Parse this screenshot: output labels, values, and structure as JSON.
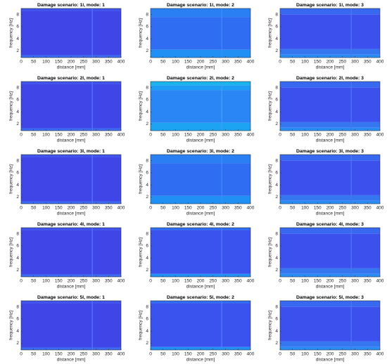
{
  "chart_data": [
    {
      "type": "heatmap",
      "title": "Damage scenario: 1l, mode: 1",
      "xlabel": "distance [mm]",
      "ylabel": "frequency [Hz]",
      "xlim": [
        0,
        400
      ],
      "ylim": [
        0.9,
        9
      ],
      "xticks": [
        0,
        50,
        100,
        150,
        200,
        250,
        300,
        350,
        400
      ],
      "yticks": [
        2,
        4,
        6,
        8
      ],
      "bands": [
        {
          "y": [
            0.9,
            1.3
          ],
          "color": "#3b6cf2"
        },
        {
          "y": [
            1.3,
            8.6
          ],
          "color": "#3f45e6"
        },
        {
          "y": [
            8.6,
            9
          ],
          "color": "#3d55ec"
        }
      ],
      "streak": {
        "x": 285,
        "color": "#4a7cf4"
      }
    },
    {
      "type": "heatmap",
      "title": "Damage scenario: 1l, mode: 2",
      "xlabel": "distance [mm]",
      "ylabel": "frequency [Hz]",
      "xlim": [
        0,
        400
      ],
      "ylim": [
        0.9,
        9
      ],
      "xticks": [
        0,
        50,
        100,
        150,
        200,
        250,
        300,
        350,
        400
      ],
      "yticks": [
        2,
        4,
        6,
        8
      ],
      "bands": [
        {
          "y": [
            0.9,
            2.2
          ],
          "color": "#2090f5"
        },
        {
          "y": [
            2.2,
            7.6
          ],
          "color": "#2f6ef2"
        },
        {
          "y": [
            7.6,
            9
          ],
          "color": "#2a80f3"
        }
      ],
      "streak": {
        "x": 285,
        "color": "#3d8ef5"
      }
    },
    {
      "type": "heatmap",
      "title": "Damage scenario: 1l, mode: 3",
      "xlabel": "distance [mm]",
      "ylabel": "frequency [Hz]",
      "xlim": [
        0,
        400
      ],
      "ylim": [
        0.9,
        9
      ],
      "xticks": [
        0,
        50,
        100,
        150,
        200,
        250,
        300,
        350,
        400
      ],
      "yticks": [
        2,
        4,
        6,
        8
      ],
      "bands": [
        {
          "y": [
            0.9,
            1.4
          ],
          "color": "#2a8cf5"
        },
        {
          "y": [
            1.4,
            2.3
          ],
          "color": "#3576f1"
        },
        {
          "y": [
            2.3,
            8
          ],
          "color": "#3c50ee"
        },
        {
          "y": [
            8,
            9
          ],
          "color": "#3868ef"
        }
      ],
      "streak": {
        "x": 285,
        "color": "#4a78f3"
      }
    },
    {
      "type": "heatmap",
      "title": "Damage scenario: 2l, mode: 1",
      "xlabel": "distance [mm]",
      "ylabel": "frequency [Hz]",
      "xlim": [
        0,
        400
      ],
      "ylim": [
        0.9,
        9
      ],
      "xticks": [
        0,
        50,
        100,
        150,
        200,
        250,
        300,
        350,
        400
      ],
      "yticks": [
        2,
        4,
        6,
        8
      ],
      "bands": [
        {
          "y": [
            0.9,
            1.3
          ],
          "color": "#3b6cf2"
        },
        {
          "y": [
            1.3,
            8.6
          ],
          "color": "#3f45e6"
        },
        {
          "y": [
            8.6,
            9
          ],
          "color": "#3d55ec"
        }
      ],
      "streak": {
        "x": 285,
        "color": "#4a7cf4"
      }
    },
    {
      "type": "heatmap",
      "title": "Damage scenario: 2l, mode: 2",
      "xlabel": "distance [mm]",
      "ylabel": "frequency [Hz]",
      "xlim": [
        0,
        400
      ],
      "ylim": [
        0.9,
        9
      ],
      "xticks": [
        0,
        50,
        100,
        150,
        200,
        250,
        300,
        350,
        400
      ],
      "yticks": [
        2,
        4,
        6,
        8
      ],
      "bands": [
        {
          "y": [
            0.9,
            2.2
          ],
          "color": "#1ca4f2"
        },
        {
          "y": [
            2.2,
            7.6
          ],
          "color": "#2a86f4"
        },
        {
          "y": [
            7.6,
            8.4
          ],
          "color": "#1d9cf3"
        },
        {
          "y": [
            8.4,
            9
          ],
          "color": "#18b4ee"
        }
      ],
      "streak": {
        "x": 285,
        "color": "#40a0f5"
      }
    },
    {
      "type": "heatmap",
      "title": "Damage scenario: 2l, mode: 3",
      "xlabel": "distance [mm]",
      "ylabel": "frequency [Hz]",
      "xlim": [
        0,
        400
      ],
      "ylim": [
        0.9,
        9
      ],
      "xticks": [
        0,
        50,
        100,
        150,
        200,
        250,
        300,
        350,
        400
      ],
      "yticks": [
        2,
        4,
        6,
        8
      ],
      "bands": [
        {
          "y": [
            0.9,
            1.4
          ],
          "color": "#2a8cf5"
        },
        {
          "y": [
            1.4,
            2.3
          ],
          "color": "#3576f1"
        },
        {
          "y": [
            2.3,
            8
          ],
          "color": "#3c50ee"
        },
        {
          "y": [
            8,
            9
          ],
          "color": "#3868ef"
        }
      ],
      "streak": {
        "x": 285,
        "color": "#4a78f3"
      }
    },
    {
      "type": "heatmap",
      "title": "Damage scenario: 3l, mode: 1",
      "xlabel": "distance [mm]",
      "ylabel": "frequency [Hz]",
      "xlim": [
        0,
        400
      ],
      "ylim": [
        0.9,
        9
      ],
      "xticks": [
        0,
        50,
        100,
        150,
        200,
        250,
        300,
        350,
        400
      ],
      "yticks": [
        2,
        4,
        6,
        8
      ],
      "bands": [
        {
          "y": [
            0.9,
            1.3
          ],
          "color": "#3b6cf2"
        },
        {
          "y": [
            1.3,
            8.6
          ],
          "color": "#3f45e6"
        },
        {
          "y": [
            8.6,
            9
          ],
          "color": "#3d55ec"
        }
      ],
      "streak": {
        "x": 285,
        "color": "#4a7cf4"
      }
    },
    {
      "type": "heatmap",
      "title": "Damage scenario: 3l, mode: 2",
      "xlabel": "distance [mm]",
      "ylabel": "frequency [Hz]",
      "xlim": [
        0,
        400
      ],
      "ylim": [
        0.9,
        9
      ],
      "xticks": [
        0,
        50,
        100,
        150,
        200,
        250,
        300,
        350,
        400
      ],
      "yticks": [
        2,
        4,
        6,
        8
      ],
      "bands": [
        {
          "y": [
            0.9,
            2.2
          ],
          "color": "#2090f5"
        },
        {
          "y": [
            2.2,
            7.6
          ],
          "color": "#2f6ef2"
        },
        {
          "y": [
            7.6,
            9
          ],
          "color": "#2a80f3"
        }
      ],
      "streak": {
        "x": 285,
        "color": "#3d8ef5"
      }
    },
    {
      "type": "heatmap",
      "title": "Damage scenario: 3l, mode: 3",
      "xlabel": "distance [mm]",
      "ylabel": "frequency [Hz]",
      "xlim": [
        0,
        400
      ],
      "ylim": [
        0.9,
        9
      ],
      "xticks": [
        0,
        50,
        100,
        150,
        200,
        250,
        300,
        350,
        400
      ],
      "yticks": [
        2,
        4,
        6,
        8
      ],
      "bands": [
        {
          "y": [
            0.9,
            1.4
          ],
          "color": "#2a8cf5"
        },
        {
          "y": [
            1.4,
            2.3
          ],
          "color": "#3576f1"
        },
        {
          "y": [
            2.3,
            8
          ],
          "color": "#3c50ee"
        },
        {
          "y": [
            8,
            9
          ],
          "color": "#3868ef"
        }
      ],
      "streak": {
        "x": 285,
        "color": "#4a78f3"
      }
    },
    {
      "type": "heatmap",
      "title": "Damage scenario: 4l, mode: 1",
      "xlabel": "distance [mm]",
      "ylabel": "frequency [Hz]",
      "xlim": [
        0,
        400
      ],
      "ylim": [
        0.9,
        9
      ],
      "xticks": [
        0,
        50,
        100,
        150,
        200,
        250,
        300,
        350,
        400
      ],
      "yticks": [
        2,
        4,
        6,
        8
      ],
      "bands": [
        {
          "y": [
            0.9,
            1.3
          ],
          "color": "#3b6cf2"
        },
        {
          "y": [
            1.3,
            8.6
          ],
          "color": "#3f45e6"
        },
        {
          "y": [
            8.6,
            9
          ],
          "color": "#3d55ec"
        }
      ],
      "streak": {
        "x": 285,
        "color": "#4a7cf4"
      }
    },
    {
      "type": "heatmap",
      "title": "Damage scenario: 4l, mode: 2",
      "xlabel": "distance [mm]",
      "ylabel": "frequency [Hz]",
      "xlim": [
        0,
        400
      ],
      "ylim": [
        0.9,
        9
      ],
      "xticks": [
        0,
        50,
        100,
        150,
        200,
        250,
        300,
        350,
        400
      ],
      "yticks": [
        2,
        4,
        6,
        8
      ],
      "bands": [
        {
          "y": [
            0.9,
            1.4
          ],
          "color": "#2090f5"
        },
        {
          "y": [
            1.4,
            8.6
          ],
          "color": "#3a52ee"
        },
        {
          "y": [
            8.6,
            9
          ],
          "color": "#2f6ef2"
        }
      ],
      "streak": {
        "x": 285,
        "color": "#4a80f4"
      }
    },
    {
      "type": "heatmap",
      "title": "Damage scenario: 4l, mode: 3",
      "xlabel": "distance [mm]",
      "ylabel": "frequency [Hz]",
      "xlim": [
        0,
        400
      ],
      "ylim": [
        0.9,
        9
      ],
      "xticks": [
        0,
        50,
        100,
        150,
        200,
        250,
        300,
        350,
        400
      ],
      "yticks": [
        2,
        4,
        6,
        8
      ],
      "bands": [
        {
          "y": [
            0.9,
            1.4
          ],
          "color": "#2a8cf5"
        },
        {
          "y": [
            1.4,
            2.3
          ],
          "color": "#3576f1"
        },
        {
          "y": [
            2.3,
            8
          ],
          "color": "#3c50ee"
        },
        {
          "y": [
            8,
            9
          ],
          "color": "#3868ef"
        }
      ],
      "streak": {
        "x": 285,
        "color": "#4a78f3"
      }
    },
    {
      "type": "heatmap",
      "title": "Damage scenario: 5l, mode: 1",
      "xlabel": "distance [mm]",
      "ylabel": "frequency [Hz]",
      "xlim": [
        0,
        400
      ],
      "ylim": [
        0.9,
        9
      ],
      "xticks": [
        0,
        50,
        100,
        150,
        200,
        250,
        300,
        350,
        400
      ],
      "yticks": [
        2,
        4,
        6,
        8
      ],
      "bands": [
        {
          "y": [
            0.9,
            1.3
          ],
          "color": "#3b6cf2"
        },
        {
          "y": [
            1.3,
            8.6
          ],
          "color": "#3f45e6"
        },
        {
          "y": [
            8.6,
            9
          ],
          "color": "#3d55ec"
        }
      ],
      "streak": {
        "x": 285,
        "color": "#4a7cf4"
      }
    },
    {
      "type": "heatmap",
      "title": "Damage scenario: 5l, mode: 2",
      "xlabel": "distance [mm]",
      "ylabel": "frequency [Hz]",
      "xlim": [
        0,
        400
      ],
      "ylim": [
        0.9,
        9
      ],
      "xticks": [
        0,
        50,
        100,
        150,
        200,
        250,
        300,
        350,
        400
      ],
      "yticks": [
        2,
        4,
        6,
        8
      ],
      "bands": [
        {
          "y": [
            0.9,
            1.4
          ],
          "color": "#2090f5"
        },
        {
          "y": [
            1.4,
            8.6
          ],
          "color": "#3a52ee"
        },
        {
          "y": [
            8.6,
            9
          ],
          "color": "#2f6ef2"
        }
      ],
      "streak": {
        "x": 285,
        "color": "#4a80f4"
      }
    },
    {
      "type": "heatmap",
      "title": "Damage scenario: 5l, mode: 3",
      "xlabel": "distance [mm]",
      "ylabel": "frequency [Hz]",
      "xlim": [
        0,
        400
      ],
      "ylim": [
        0.9,
        9
      ],
      "xticks": [
        0,
        50,
        100,
        150,
        200,
        250,
        300,
        350,
        400
      ],
      "yticks": [
        2,
        4,
        6,
        8
      ],
      "bands": [
        {
          "y": [
            0.9,
            1.4
          ],
          "color": "#2a8cf5"
        },
        {
          "y": [
            1.4,
            2.3
          ],
          "color": "#3576f1"
        },
        {
          "y": [
            2.3,
            8
          ],
          "color": "#3c50ee"
        },
        {
          "y": [
            8,
            9
          ],
          "color": "#3868ef"
        }
      ],
      "streak": {
        "x": 285,
        "color": "#4a78f3"
      }
    }
  ]
}
